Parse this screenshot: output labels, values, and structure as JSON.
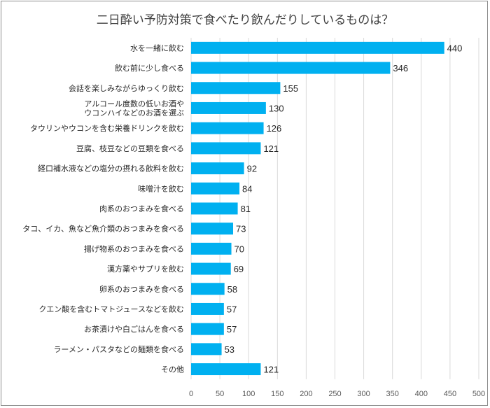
{
  "chart_data": {
    "type": "bar",
    "orientation": "horizontal",
    "title": "二日酔い予防対策で食べたり飲んだりしているものは？",
    "categories": [
      "水を一緒に飲む",
      "飲む前に少し食べる",
      "会話を楽しみながらゆっくり飲む",
      [
        "アルコール度数の低いお酒や",
        "ウコンハイなどのお酒を選ぶ"
      ],
      "タウリンやウコンを含む栄養ドリンクを飲む",
      "豆腐、枝豆などの豆類を食べる",
      "経口補水液などの塩分の摂れる飲料を飲む",
      "味噌汁を飲む",
      "肉系のおつまみを食べる",
      "タコ、イカ、魚など魚介類のおつまみを食べる",
      "揚げ物系のおつまみを食べる",
      "漢方薬やサプリを飲む",
      "卵系のおつまみを食べる",
      "クエン酸を含むトマトジュースなどを飲む",
      "お茶漬けや白ごはんを食べる",
      "ラーメン・パスタなどの麺類を食べる",
      "その他"
    ],
    "values": [
      440,
      346,
      155,
      130,
      126,
      121,
      92,
      84,
      81,
      73,
      70,
      69,
      58,
      57,
      57,
      53,
      121
    ],
    "xlim": [
      0,
      500
    ],
    "xticks": [
      0,
      50,
      100,
      150,
      200,
      250,
      300,
      350,
      400,
      450,
      500
    ],
    "grid": true,
    "bar_color": "#00B0F0",
    "grid_color": "#d9d9d9"
  }
}
